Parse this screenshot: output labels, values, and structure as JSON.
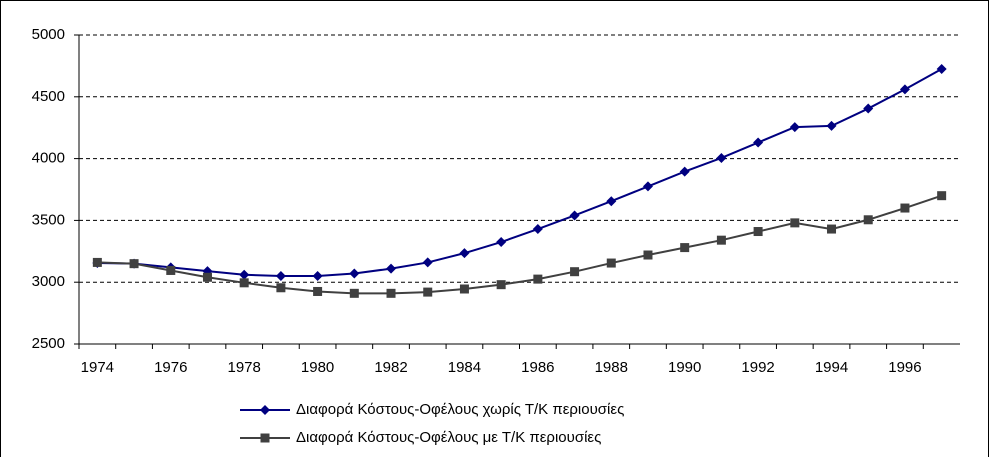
{
  "chart_data": {
    "type": "line",
    "categories": [
      "1974",
      null,
      "1976",
      null,
      "1978",
      null,
      "1980",
      null,
      "1982",
      null,
      "1984",
      null,
      "1986",
      null,
      "1988",
      null,
      "1990",
      null,
      "1992",
      null,
      "1994",
      null,
      "1996",
      null
    ],
    "series": [
      {
        "name": "Διαφορά Κόστους-Οφέλους χωρίς Τ/Κ περιουσίες",
        "color": "#000080",
        "marker": "diamond",
        "values": [
          3155,
          3150,
          3120,
          3090,
          3060,
          3050,
          3050,
          3070,
          3110,
          3160,
          3235,
          3325,
          3430,
          3540,
          3655,
          3775,
          3895,
          4005,
          4130,
          4255,
          4265,
          4405,
          4560,
          4725
        ]
      },
      {
        "name": "Διαφορά Κόστους-Οφέλους με Τ/Κ περιουσίες",
        "color": "#404040",
        "marker": "square",
        "values": [
          3160,
          3150,
          3095,
          3040,
          2995,
          2955,
          2925,
          2910,
          2910,
          2920,
          2945,
          2980,
          3025,
          3085,
          3155,
          3220,
          3280,
          3340,
          3410,
          3480,
          3430,
          3505,
          3600,
          3700
        ]
      }
    ],
    "ylim": [
      2500,
      5000
    ],
    "yticks": [
      2500,
      3000,
      3500,
      4000,
      4500,
      5000
    ],
    "grid": true,
    "legend": "bottom"
  }
}
